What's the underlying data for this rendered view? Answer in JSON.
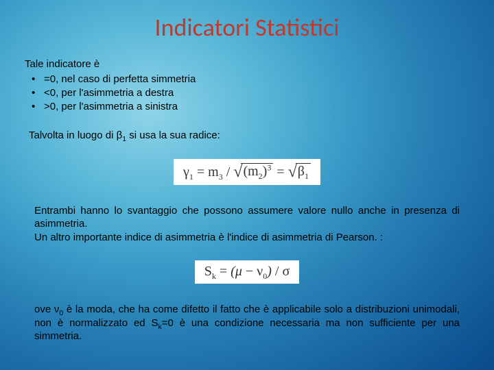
{
  "title": "Indicatori Statistici",
  "intro": "Tale indicatore è",
  "bullets": [
    "=0, nel caso di perfetta simmetria",
    "<0, per l'asimmetria a destra",
    ">0, per l'asimmetria a sinistra"
  ],
  "para1_prefix": "Talvolta in luogo di β",
  "para1_sub": "1",
  "para1_suffix": " si usa la sua radice:",
  "formula1": {
    "gamma": "γ",
    "gamma_sub": "1",
    "eq": " = m",
    "m3_sub": "3",
    "div": " / ",
    "m2": "(m",
    "m2_sub": "2",
    "m2_close": ")",
    "m2_exp": "3",
    "eq2": " = ",
    "beta": "β",
    "beta_sub": "1"
  },
  "para2": "Entrambi hanno lo svantaggio che possono assumere valore nullo anche in presenza di asimmetria.",
  "para3": "Un altro importante indice di asimmetria è l'indice di asimmetria di Pearson. :",
  "formula2": {
    "s": "S",
    "s_sub": "k",
    "eq": " = ",
    "lpar": "(",
    "mu": "μ",
    "minus": " − ν",
    "nu_sub": "0",
    "rpar": ")",
    "div": " / σ"
  },
  "para4_a": "ove ν",
  "para4_sub1": "0",
  "para4_b": " è la moda, che ha come difetto il fatto che è applicabile solo a distribuzioni unimodali, non è normalizzato ed S",
  "para4_sub2": "k",
  "para4_c": "=0 è una condizione necessaria ma non sufficiente per una simmetria.",
  "styling": {
    "slide_size": [
      720,
      540
    ],
    "title_color": "#c0392b",
    "title_fontsize": 36,
    "body_fontsize": 15,
    "body_color": "#000000",
    "formula_bg": "#ffffff",
    "formula_color": "#333333",
    "formula_fontfamily": "Times New Roman",
    "font_family": "Arial",
    "background_gradient": {
      "type": "radial",
      "stops": [
        "#8fd4e8",
        "#5ab8d8",
        "#3a9cc8",
        "#2880b5",
        "#1a6aa5",
        "#0e5393",
        "#063e7d",
        "#032d68"
      ]
    }
  }
}
